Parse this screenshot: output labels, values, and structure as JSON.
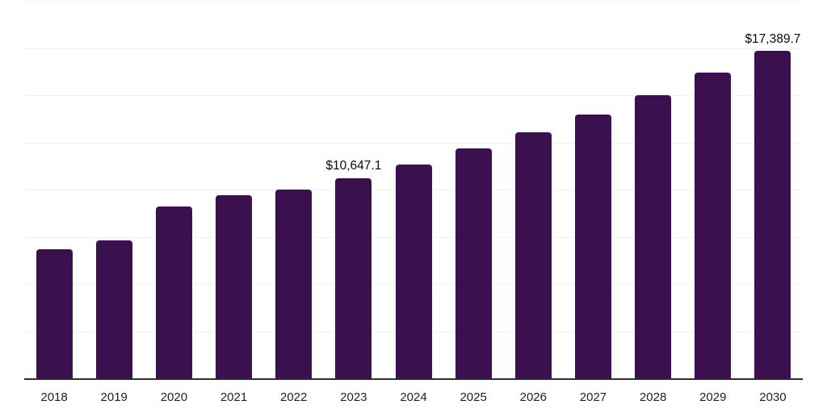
{
  "chart_data": {
    "type": "bar",
    "title": "",
    "xlabel": "",
    "ylabel": "",
    "categories": [
      "2018",
      "2019",
      "2020",
      "2021",
      "2022",
      "2023",
      "2024",
      "2025",
      "2026",
      "2027",
      "2028",
      "2029",
      "2030"
    ],
    "values": [
      6890,
      7355,
      9155,
      9755,
      10050,
      10647.1,
      11375,
      12230,
      13090,
      14030,
      15055,
      16250,
      17389.7
    ],
    "data_labels": [
      {
        "category": "2023",
        "text": "$10,647.1"
      },
      {
        "category": "2030",
        "text": "$17,389.7"
      }
    ],
    "ylim": [
      0,
      20000
    ],
    "grid_interval": 2500,
    "grid": "horizontal-only",
    "legend": "none",
    "bar_color": "#3A114E"
  },
  "style": {
    "background": "#ffffff",
    "bar_color": "#3A114E",
    "grid_color": "#f2f2f2",
    "axis_color": "#2e2e2e",
    "tick_label_color": "#1f1f1f",
    "data_label_color": "#0a0a0a"
  }
}
